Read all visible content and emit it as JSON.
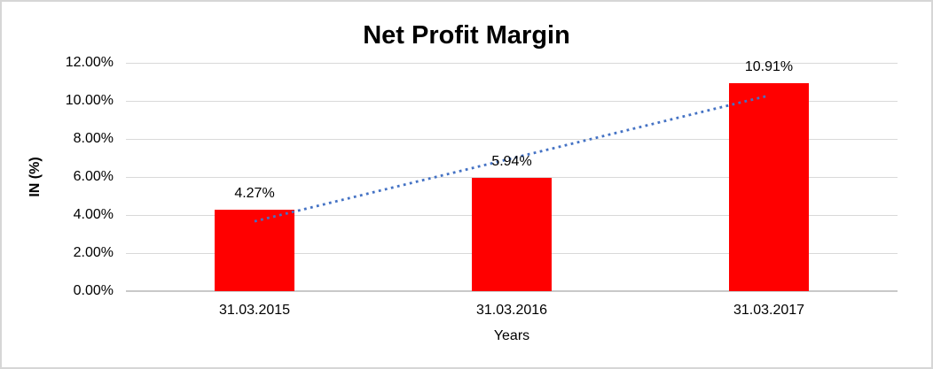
{
  "frame": {
    "background": "#ffffff",
    "border_color": "#d6d6d6"
  },
  "chart_data": {
    "type": "bar",
    "title": "Net Profit Margin",
    "categories": [
      "31.03.2015",
      "31.03.2016",
      "31.03.2017"
    ],
    "values": [
      4.27,
      5.94,
      10.91
    ],
    "data_labels": [
      "4.27%",
      "5.94%",
      "10.91%"
    ],
    "xlabel": "Years",
    "ylabel": "IN (%)",
    "ylim": [
      0,
      12
    ],
    "y_ticks": [
      0,
      2,
      4,
      6,
      8,
      10,
      12
    ],
    "y_tick_labels": [
      "0.00%",
      "2.00%",
      "4.00%",
      "6.00%",
      "8.00%",
      "10.00%",
      "12.00%"
    ],
    "grid": true,
    "legend": "none",
    "bar_color": "#ff0000",
    "gridline_color": "#d9d9d9",
    "text_color": "#000000",
    "trendline": {
      "type": "linear",
      "style": "dotted",
      "color": "#4472c4",
      "start_value": 3.67,
      "end_value": 10.28
    }
  }
}
